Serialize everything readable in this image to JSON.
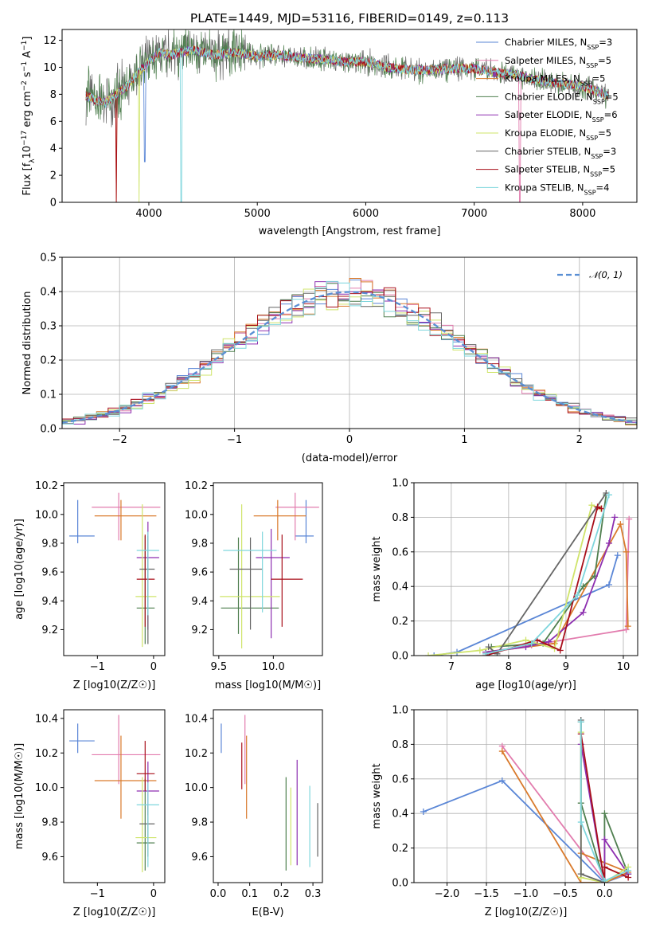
{
  "chart_data": [
    {
      "id": "spectrum",
      "type": "line",
      "title": "PLATE=1449, MJD=53116, FIBERID=0149, z=0.113",
      "xlabel": "wavelength [Angstrom, rest frame]",
      "ylabel": "Flux [f_λ10^-17 erg cm^-2 s^-1 A^-1]",
      "xlim": [
        3200,
        8500
      ],
      "ylim": [
        0,
        12.8
      ],
      "xticks": [
        4000,
        5000,
        6000,
        7000,
        8000
      ],
      "yticks": [
        0,
        2,
        4,
        6,
        8,
        10,
        12
      ],
      "legend_position": "upper right",
      "spectrum_shape": {
        "x": [
          3420,
          3500,
          3600,
          3700,
          3800,
          3900,
          4000,
          4100,
          4200,
          4400,
          4600,
          4800,
          5000,
          5200,
          5400,
          5600,
          5800,
          6000,
          6200,
          6400,
          6600,
          6800,
          7000,
          7200,
          7400,
          7600,
          7800,
          8000,
          8240
        ],
        "y": [
          7.9,
          7.6,
          7.4,
          8.0,
          8.6,
          9.6,
          10.4,
          11.1,
          10.9,
          11.3,
          10.9,
          11.1,
          10.8,
          10.9,
          10.7,
          10.6,
          10.4,
          10.4,
          10.0,
          9.8,
          9.8,
          9.9,
          9.9,
          9.6,
          9.4,
          9.0,
          8.8,
          8.6,
          7.9
        ]
      },
      "series": [
        {
          "name": "Chabrier MILES, N_SSP=3",
          "color": "#5a86d6",
          "spike": [
            3960,
            3.0
          ]
        },
        {
          "name": "Salpeter MILES, N_SSP=5",
          "color": "#e27cae",
          "spike": [
            7420,
            0
          ]
        },
        {
          "name": "Kroupa MILES, N_SSP=5",
          "color": "#d97a2c",
          "spike": [
            3700,
            0
          ]
        },
        {
          "name": "Chabrier ELODIE, N_SSP=5",
          "color": "#4f7f4f",
          "spike": null
        },
        {
          "name": "Salpeter ELODIE, N_SSP=6",
          "color": "#8d2fb0",
          "spike": null
        },
        {
          "name": "Kroupa ELODIE, N_SSP=5",
          "color": "#cfe46a",
          "spike": [
            3910,
            0
          ]
        },
        {
          "name": "Chabrier STELIB, N_SSP=3",
          "color": "#666666",
          "spike": null
        },
        {
          "name": "Salpeter STELIB, N_SSP=5",
          "color": "#a80f1a",
          "spike": [
            3700,
            0
          ]
        },
        {
          "name": "Kroupa STELIB, N_SSP=4",
          "color": "#7fd6dd",
          "spike": [
            4300,
            0
          ]
        }
      ]
    },
    {
      "id": "residuals",
      "type": "line",
      "xlabel": "(data-model)/error",
      "ylabel": "Normed distribution",
      "xlim": [
        -2.5,
        2.5
      ],
      "ylim": [
        0,
        0.5
      ],
      "xticks": [
        -2,
        -1,
        0,
        1,
        2
      ],
      "yticks": [
        0.0,
        0.1,
        0.2,
        0.3,
        0.4,
        0.5
      ],
      "legend": "N(0,1)",
      "gaussian_color": "#5a8fd4",
      "hist_bin_width": 0.1
    },
    {
      "id": "age_vs_Z",
      "type": "scatter",
      "xlabel": "Z [log10(Z/Z☉)]",
      "ylabel": "age  [log10(age/yr)]",
      "xlim": [
        -1.6,
        0.2
      ],
      "ylim": [
        9.02,
        10.22
      ],
      "xticks": [
        -1,
        0
      ],
      "yticks": [
        9.2,
        9.4,
        9.6,
        9.8,
        10.0,
        10.2
      ],
      "points": [
        {
          "color": "#5a86d6",
          "x": -1.35,
          "xl": -1.5,
          "xh": -1.05,
          "y": 9.85,
          "yl": 9.8,
          "yh": 10.1
        },
        {
          "color": "#e27cae",
          "x": -0.62,
          "xl": -1.1,
          "xh": 0.12,
          "y": 10.05,
          "yl": 9.82,
          "yh": 10.15
        },
        {
          "color": "#d97a2c",
          "x": -0.58,
          "xl": -1.05,
          "xh": 0.05,
          "y": 9.99,
          "yl": 9.82,
          "yh": 10.1
        },
        {
          "color": "#4f7f4f",
          "x": -0.15,
          "xl": -0.3,
          "xh": 0.02,
          "y": 9.35,
          "yl": 9.1,
          "yh": 9.85
        },
        {
          "color": "#8d2fb0",
          "x": -0.1,
          "xl": -0.3,
          "xh": 0.1,
          "y": 9.7,
          "yl": 9.2,
          "yh": 9.95
        },
        {
          "color": "#cfe46a",
          "x": -0.2,
          "xl": -0.32,
          "xh": 0.05,
          "y": 9.43,
          "yl": 9.08,
          "yh": 10.07
        },
        {
          "color": "#666666",
          "x": -0.1,
          "xl": -0.25,
          "xh": 0.02,
          "y": 9.62,
          "yl": 9.1,
          "yh": 9.85
        },
        {
          "color": "#a80f1a",
          "x": -0.15,
          "xl": -0.3,
          "xh": 0.02,
          "y": 9.55,
          "yl": 9.22,
          "yh": 9.86
        },
        {
          "color": "#7fd6dd",
          "x": -0.1,
          "xl": -0.3,
          "xh": 0.1,
          "y": 9.75,
          "yl": 9.3,
          "yh": 9.88
        }
      ]
    },
    {
      "id": "age_vs_mass",
      "type": "scatter",
      "xlabel": "mass [log10(M/M☉)]",
      "ylabel": "",
      "xlim": [
        9.45,
        10.45
      ],
      "ylim": [
        9.02,
        10.22
      ],
      "xticks": [
        9.5,
        10.0
      ],
      "yticks": [
        9.2,
        9.4,
        9.6,
        9.8,
        10.0,
        10.2
      ],
      "points": [
        {
          "color": "#5a86d6",
          "x": 10.3,
          "xl": 10.2,
          "xh": 10.37,
          "y": 9.85,
          "yl": 9.8,
          "yh": 10.1
        },
        {
          "color": "#e27cae",
          "x": 10.2,
          "xl": 10.02,
          "xh": 10.42,
          "y": 10.05,
          "yl": 9.82,
          "yh": 10.15
        },
        {
          "color": "#d97a2c",
          "x": 10.04,
          "xl": 9.82,
          "xh": 10.3,
          "y": 9.99,
          "yl": 9.82,
          "yh": 10.1
        },
        {
          "color": "#4f7f4f",
          "x": 9.68,
          "xl": 9.52,
          "xh": 10.05,
          "y": 9.35,
          "yl": 9.17,
          "yh": 9.84
        },
        {
          "color": "#8d2fb0",
          "x": 9.98,
          "xl": 9.84,
          "xh": 10.15,
          "y": 9.7,
          "yl": 9.14,
          "yh": 9.9
        },
        {
          "color": "#cfe46a",
          "x": 9.71,
          "xl": 9.51,
          "xh": 10.06,
          "y": 9.43,
          "yl": 9.07,
          "yh": 10.07
        },
        {
          "color": "#666666",
          "x": 9.79,
          "xl": 9.6,
          "xh": 9.9,
          "y": 9.62,
          "yl": 9.2,
          "yh": 9.84
        },
        {
          "color": "#a80f1a",
          "x": 10.08,
          "xl": 9.98,
          "xh": 10.27,
          "y": 9.55,
          "yl": 9.22,
          "yh": 9.86
        },
        {
          "color": "#7fd6dd",
          "x": 9.9,
          "xl": 9.54,
          "xh": 10.03,
          "y": 9.75,
          "yl": 9.32,
          "yh": 9.88
        }
      ]
    },
    {
      "id": "mass_weight_vs_age",
      "type": "line",
      "xlabel": "age  [log10(age/yr)]",
      "ylabel": "mass weight",
      "xlim": [
        6.35,
        10.25
      ],
      "ylim": [
        0,
        1
      ],
      "xticks": [
        7,
        8,
        9,
        10
      ],
      "yticks": [
        0.0,
        0.2,
        0.4,
        0.6,
        0.8,
        1.0
      ],
      "series": [
        {
          "color": "#5a86d6",
          "x": [
            6.7,
            7.1,
            9.75,
            9.9
          ],
          "y": [
            0.0,
            0.02,
            0.41,
            0.58
          ]
        },
        {
          "color": "#e27cae",
          "x": [
            7.6,
            8.4,
            10.05,
            10.1
          ],
          "y": [
            0.02,
            0.06,
            0.15,
            0.79
          ]
        },
        {
          "color": "#d97a2c",
          "x": [
            7.6,
            8.8,
            9.95,
            10.05,
            10.08
          ],
          "y": [
            0.02,
            0.07,
            0.76,
            0.6,
            0.17
          ]
        },
        {
          "color": "#4f7f4f",
          "x": [
            7.7,
            8.6,
            9.3,
            9.5,
            9.7
          ],
          "y": [
            0.05,
            0.07,
            0.4,
            0.46,
            0.93
          ]
        },
        {
          "color": "#8d2fb0",
          "x": [
            7.6,
            8.3,
            8.7,
            9.3,
            9.75,
            9.85
          ],
          "y": [
            0.02,
            0.05,
            0.08,
            0.25,
            0.65,
            0.8
          ]
        },
        {
          "color": "#cfe46a",
          "x": [
            6.6,
            7.5,
            8.3,
            8.8,
            9.45,
            9.6
          ],
          "y": [
            0.0,
            0.03,
            0.09,
            0.04,
            0.87,
            0.85
          ]
        },
        {
          "color": "#666666",
          "x": [
            7.65,
            7.8,
            9.7
          ],
          "y": [
            0.05,
            0.01,
            0.94
          ]
        },
        {
          "color": "#a80f1a",
          "x": [
            7.6,
            8.5,
            8.9,
            9.55,
            9.62
          ],
          "y": [
            0.0,
            0.09,
            0.03,
            0.86,
            0.85
          ]
        },
        {
          "color": "#7fd6dd",
          "x": [
            7.6,
            8.4,
            9.2,
            9.75
          ],
          "y": [
            0.01,
            0.07,
            0.35,
            0.93
          ]
        }
      ]
    },
    {
      "id": "mass_vs_Z",
      "type": "scatter",
      "xlabel": "Z [log10(Z/Z☉)]",
      "ylabel": "mass [log10(M/M☉)]",
      "xlim": [
        -1.6,
        0.2
      ],
      "ylim": [
        9.45,
        10.45
      ],
      "xticks": [
        -1,
        0
      ],
      "yticks": [
        9.6,
        9.8,
        10.0,
        10.2,
        10.4
      ],
      "points": [
        {
          "color": "#5a86d6",
          "x": -1.35,
          "xl": -1.5,
          "xh": -1.05,
          "y": 10.27,
          "yl": 10.2,
          "yh": 10.37
        },
        {
          "color": "#e27cae",
          "x": -0.62,
          "xl": -1.1,
          "xh": 0.12,
          "y": 10.19,
          "yl": 10.02,
          "yh": 10.42
        },
        {
          "color": "#d97a2c",
          "x": -0.58,
          "xl": -1.05,
          "xh": 0.05,
          "y": 10.04,
          "yl": 9.82,
          "yh": 10.3
        },
        {
          "color": "#4f7f4f",
          "x": -0.15,
          "xl": -0.3,
          "xh": 0.02,
          "y": 9.68,
          "yl": 9.52,
          "yh": 10.05
        },
        {
          "color": "#8d2fb0",
          "x": -0.1,
          "xl": -0.3,
          "xh": 0.1,
          "y": 9.98,
          "yl": 9.84,
          "yh": 10.15
        },
        {
          "color": "#cfe46a",
          "x": -0.2,
          "xl": -0.32,
          "xh": 0.05,
          "y": 9.71,
          "yl": 9.51,
          "yh": 10.06
        },
        {
          "color": "#666666",
          "x": -0.1,
          "xl": -0.25,
          "xh": 0.02,
          "y": 9.79,
          "yl": 9.6,
          "yh": 9.9
        },
        {
          "color": "#a80f1a",
          "x": -0.15,
          "xl": -0.3,
          "xh": 0.02,
          "y": 10.08,
          "yl": 9.98,
          "yh": 10.27
        },
        {
          "color": "#7fd6dd",
          "x": -0.1,
          "xl": -0.3,
          "xh": 0.1,
          "y": 9.9,
          "yl": 9.54,
          "yh": 10.03
        }
      ]
    },
    {
      "id": "mass_vs_ebv",
      "type": "scatter",
      "xlabel": "E(B-V)",
      "ylabel": "",
      "xlim": [
        -0.015,
        0.33
      ],
      "ylim": [
        9.45,
        10.45
      ],
      "xticks": [
        0.0,
        0.1,
        0.2,
        0.3
      ],
      "yticks": [
        9.6,
        9.8,
        10.0,
        10.2,
        10.4
      ],
      "points": [
        {
          "color": "#5a86d6",
          "x": 0.01,
          "yl": 10.2,
          "yh": 10.37
        },
        {
          "color": "#e27cae",
          "x": 0.085,
          "yl": 10.02,
          "yh": 10.42
        },
        {
          "color": "#d97a2c",
          "x": 0.09,
          "yl": 9.82,
          "yh": 10.3
        },
        {
          "color": "#a80f1a",
          "x": 0.075,
          "yl": 9.99,
          "yh": 10.26
        },
        {
          "color": "#4f7f4f",
          "x": 0.215,
          "yl": 9.52,
          "yh": 10.06
        },
        {
          "color": "#cfe46a",
          "x": 0.23,
          "yl": 9.55,
          "yh": 10.0
        },
        {
          "color": "#8d2fb0",
          "x": 0.25,
          "yl": 9.55,
          "yh": 10.16
        },
        {
          "color": "#7fd6dd",
          "x": 0.29,
          "yl": 9.54,
          "yh": 10.01
        },
        {
          "color": "#666666",
          "x": 0.315,
          "yl": 9.6,
          "yh": 9.91
        }
      ]
    },
    {
      "id": "mass_weight_vs_Z",
      "type": "line",
      "xlabel": "Z [log10(Z/Z☉)]",
      "ylabel": "mass weight",
      "xlim": [
        -2.42,
        0.42
      ],
      "ylim": [
        0,
        1
      ],
      "xticks": [
        -2.0,
        -1.5,
        -1.0,
        -0.5,
        0.0
      ],
      "yticks": [
        0.0,
        0.2,
        0.4,
        0.6,
        0.8,
        1.0
      ],
      "series": [
        {
          "color": "#5a86d6",
          "x": [
            -2.3,
            -1.3,
            0.0,
            0.3
          ],
          "y": [
            0.41,
            0.59,
            0.0,
            0.05
          ]
        },
        {
          "color": "#e27cae",
          "x": [
            -1.3,
            0.0,
            0.3
          ],
          "y": [
            0.79,
            0.01,
            0.05
          ]
        },
        {
          "color": "#d97a2c",
          "x": [
            -1.3,
            -0.3,
            0.0,
            0.3,
            -0.3
          ],
          "y": [
            0.76,
            0.0,
            0.0,
            0.06,
            0.17
          ]
        },
        {
          "color": "#4f7f4f",
          "x": [
            -0.3,
            -0.3,
            0.0,
            0.0,
            0.3
          ],
          "y": [
            0.93,
            0.46,
            0.0,
            0.4,
            0.05
          ]
        },
        {
          "color": "#8d2fb0",
          "x": [
            -0.3,
            0.0,
            0.0,
            0.3
          ],
          "y": [
            0.8,
            0.0,
            0.25,
            0.05
          ]
        },
        {
          "color": "#cfe46a",
          "x": [
            -0.3,
            -0.3,
            0.0,
            0.3
          ],
          "y": [
            0.87,
            0.03,
            0.0,
            0.09
          ]
        },
        {
          "color": "#666666",
          "x": [
            -0.3,
            -0.3,
            0.0
          ],
          "y": [
            0.94,
            0.05,
            0.0
          ]
        },
        {
          "color": "#a80f1a",
          "x": [
            -0.3,
            0.0,
            0.0,
            0.3
          ],
          "y": [
            0.86,
            0.0,
            0.09,
            0.03
          ]
        },
        {
          "color": "#7fd6dd",
          "x": [
            -0.3,
            -0.3,
            0.0,
            0.3
          ],
          "y": [
            0.93,
            0.35,
            0.01,
            0.07
          ]
        }
      ]
    }
  ]
}
